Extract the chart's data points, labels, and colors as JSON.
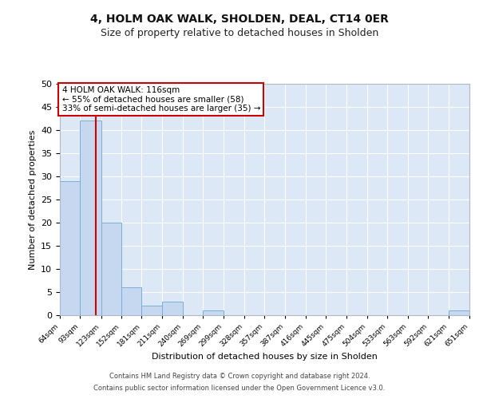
{
  "title": "4, HOLM OAK WALK, SHOLDEN, DEAL, CT14 0ER",
  "subtitle": "Size of property relative to detached houses in Sholden",
  "xlabel": "Distribution of detached houses by size in Sholden",
  "ylabel": "Number of detached properties",
  "bin_edges": [
    64,
    93,
    123,
    152,
    181,
    211,
    240,
    269,
    299,
    328,
    357,
    387,
    416,
    445,
    475,
    504,
    533,
    563,
    592,
    621,
    651
  ],
  "bar_heights": [
    29,
    42,
    20,
    6,
    2,
    3,
    0,
    1,
    0,
    0,
    0,
    0,
    0,
    0,
    0,
    0,
    0,
    0,
    0,
    1
  ],
  "bar_color": "#c5d8f0",
  "bar_edge_color": "#7aafd4",
  "vline_x": 116,
  "vline_color": "#cc0000",
  "annotation_line1": "4 HOLM OAK WALK: 116sqm",
  "annotation_line2": "← 55% of detached houses are smaller (58)",
  "annotation_line3": "33% of semi-detached houses are larger (35) →",
  "annotation_box_color": "#cc0000",
  "ylim": [
    0,
    50
  ],
  "yticks": [
    0,
    5,
    10,
    15,
    20,
    25,
    30,
    35,
    40,
    45,
    50
  ],
  "plot_bg_color": "#dce8f5",
  "footer_line1": "Contains HM Land Registry data © Crown copyright and database right 2024.",
  "footer_line2": "Contains public sector information licensed under the Open Government Licence v3.0.",
  "title_fontsize": 10,
  "subtitle_fontsize": 9,
  "footer_fontsize": 6
}
